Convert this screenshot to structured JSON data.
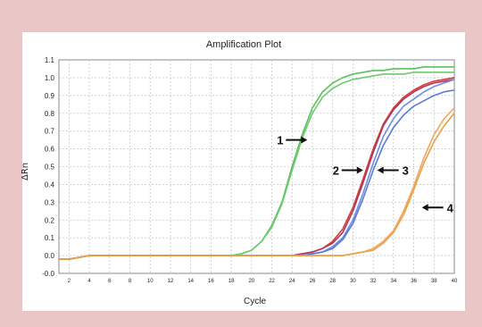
{
  "chart_data": {
    "type": "line",
    "title": "Amplification Plot",
    "xlabel": "Cycle",
    "ylabel": "ΔRn",
    "xlim": [
      1,
      40
    ],
    "ylim": [
      -0.1,
      1.1
    ],
    "x_ticks": [
      2,
      4,
      6,
      8,
      10,
      12,
      14,
      16,
      18,
      20,
      22,
      24,
      26,
      28,
      30,
      32,
      34,
      36,
      38,
      40
    ],
    "y_ticks": [
      "-0.0",
      "0.0",
      "0.1",
      "0.2",
      "0.3",
      "0.4",
      "0.5",
      "0.6",
      "0.7",
      "0.8",
      "0.9",
      "1.0",
      "1.1"
    ],
    "grid": true,
    "x": [
      1,
      2,
      3,
      4,
      5,
      6,
      7,
      8,
      9,
      10,
      11,
      12,
      13,
      14,
      15,
      16,
      17,
      18,
      19,
      20,
      21,
      22,
      23,
      24,
      25,
      26,
      27,
      28,
      29,
      30,
      31,
      32,
      33,
      34,
      35,
      36,
      37,
      38,
      39,
      40
    ],
    "series": [
      {
        "color": "#5cc05c",
        "values": [
          -0.02,
          -0.02,
          -0.01,
          0,
          0,
          0,
          0,
          0,
          0,
          0,
          0,
          0,
          0,
          0,
          0,
          0,
          0,
          0,
          0.01,
          0.03,
          0.08,
          0.17,
          0.3,
          0.5,
          0.68,
          0.83,
          0.92,
          0.97,
          1.0,
          1.02,
          1.03,
          1.04,
          1.04,
          1.05,
          1.05,
          1.05,
          1.06,
          1.06,
          1.06,
          1.06
        ]
      },
      {
        "color": "#6fca6f",
        "values": [
          -0.02,
          -0.02,
          -0.01,
          0,
          0,
          0,
          0,
          0,
          0,
          0,
          0,
          0,
          0,
          0,
          0,
          0,
          0,
          0,
          0.01,
          0.03,
          0.08,
          0.16,
          0.29,
          0.48,
          0.66,
          0.8,
          0.89,
          0.94,
          0.97,
          0.99,
          1.0,
          1.01,
          1.02,
          1.02,
          1.02,
          1.03,
          1.03,
          1.03,
          1.03,
          1.03
        ]
      },
      {
        "color": "#d93b3b",
        "values": [
          -0.02,
          -0.02,
          -0.01,
          0,
          0,
          0,
          0,
          0,
          0,
          0,
          0,
          0,
          0,
          0,
          0,
          0,
          0,
          0,
          0,
          0,
          0,
          0,
          0,
          0,
          0.01,
          0.02,
          0.04,
          0.08,
          0.15,
          0.27,
          0.43,
          0.6,
          0.74,
          0.83,
          0.89,
          0.93,
          0.96,
          0.98,
          0.99,
          1.0
        ]
      },
      {
        "color": "#a83a5a",
        "values": [
          -0.02,
          -0.02,
          -0.01,
          0,
          0,
          0,
          0,
          0,
          0,
          0,
          0,
          0,
          0,
          0,
          0,
          0,
          0,
          0,
          0,
          0,
          0,
          0,
          0,
          0,
          0.01,
          0.02,
          0.04,
          0.07,
          0.13,
          0.25,
          0.41,
          0.58,
          0.73,
          0.82,
          0.88,
          0.92,
          0.95,
          0.97,
          0.98,
          0.99
        ]
      },
      {
        "color": "#6b8fe0",
        "values": [
          -0.02,
          -0.02,
          -0.01,
          0,
          0,
          0,
          0,
          0,
          0,
          0,
          0,
          0,
          0,
          0,
          0,
          0,
          0,
          0,
          0,
          0,
          0,
          0,
          0,
          0,
          0,
          0.01,
          0.02,
          0.05,
          0.1,
          0.2,
          0.35,
          0.52,
          0.67,
          0.77,
          0.84,
          0.88,
          0.92,
          0.95,
          0.97,
          0.99
        ]
      },
      {
        "color": "#5b7ad6",
        "values": [
          -0.02,
          -0.02,
          -0.01,
          0,
          0,
          0,
          0,
          0,
          0,
          0,
          0,
          0,
          0,
          0,
          0,
          0,
          0,
          0,
          0,
          0,
          0,
          0,
          0,
          0,
          0,
          0.01,
          0.02,
          0.04,
          0.09,
          0.18,
          0.32,
          0.48,
          0.62,
          0.72,
          0.79,
          0.84,
          0.87,
          0.9,
          0.92,
          0.93
        ]
      },
      {
        "color": "#f0a85a",
        "values": [
          -0.02,
          -0.02,
          -0.01,
          0,
          0,
          0,
          0,
          0,
          0,
          0,
          0,
          0,
          0,
          0,
          0,
          0,
          0,
          0,
          0,
          0,
          0,
          0,
          0,
          0,
          0,
          0,
          0,
          0,
          0,
          0.01,
          0.02,
          0.04,
          0.08,
          0.14,
          0.25,
          0.39,
          0.55,
          0.68,
          0.77,
          0.83
        ]
      },
      {
        "color": "#e8a04c",
        "values": [
          -0.02,
          -0.02,
          -0.01,
          0,
          0,
          0,
          0,
          0,
          0,
          0,
          0,
          0,
          0,
          0,
          0,
          0,
          0,
          0,
          0,
          0,
          0,
          0,
          0,
          0,
          0,
          0,
          0,
          0,
          0,
          0.01,
          0.02,
          0.03,
          0.07,
          0.13,
          0.23,
          0.37,
          0.52,
          0.64,
          0.73,
          0.8
        ]
      }
    ],
    "annotations": [
      {
        "label": "1",
        "x": 25.5,
        "y": 0.65,
        "direction": "right"
      },
      {
        "label": "2",
        "x": 31.0,
        "y": 0.48,
        "direction": "right"
      },
      {
        "label": "3",
        "x": 32.4,
        "y": 0.48,
        "direction": "left"
      },
      {
        "label": "4",
        "x": 36.8,
        "y": 0.27,
        "direction": "left"
      }
    ]
  }
}
